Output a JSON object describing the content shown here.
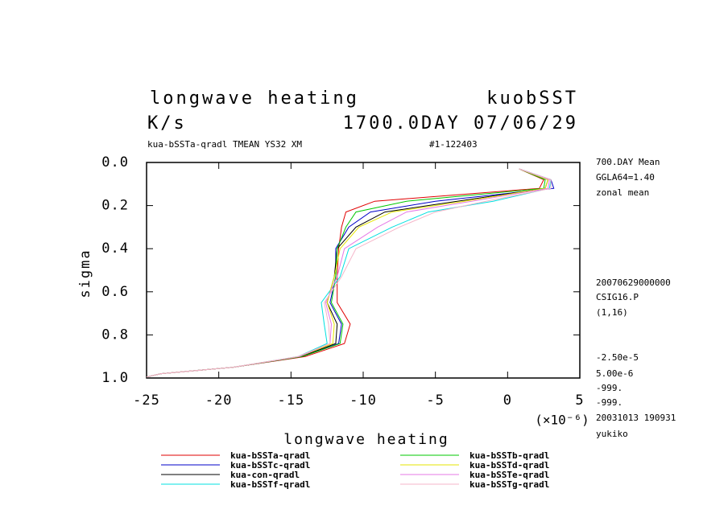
{
  "chart_data": {
    "type": "profile",
    "title": "longwave heating",
    "title_right": "kuobSST",
    "units": "K/s",
    "time_label": "1700.0DAY 07/06/29",
    "subtitle": "kua-bSSTa-qradl TMEAN YS32 XM",
    "run_id": "#1-122403",
    "x_label": "longwave heating",
    "x_multiplier": "(×10⁻⁶)",
    "y_label": "sigma",
    "annotations": [
      "700.DAY Mean",
      "GGLA64=1.40",
      "zonal mean",
      "20070629000000",
      "CSIG16.P",
      "(1,16)",
      "-2.50e-5",
      "5.00e-6",
      "-999.",
      "-999.",
      "20031013 190931",
      "yukiko"
    ],
    "xlim": [
      -25,
      5
    ],
    "xticks": [
      -25,
      -20,
      -15,
      -10,
      -5,
      0,
      5
    ],
    "ylim": [
      0,
      1
    ],
    "yticks": [
      {
        "value": 0,
        "label": "0.0"
      },
      0.2,
      0.4,
      0.6,
      0.8,
      {
        "value": 1,
        "label": "1.0"
      }
    ],
    "y_inverted": true,
    "sigma": [
      0.03,
      0.08,
      0.12,
      0.18,
      0.23,
      0.3,
      0.4,
      0.53,
      0.65,
      0.75,
      0.84,
      0.9,
      0.95,
      0.98,
      0.995
    ],
    "series": [
      {
        "name": "kua-bSSTa-qradl",
        "color": "#e00000",
        "values": [
          0.8,
          2.5,
          2.2,
          -9.2,
          -11.2,
          -11.5,
          -11.7,
          -11.8,
          -11.8,
          -10.9,
          -11.3,
          -14,
          -19,
          -24,
          -25
        ]
      },
      {
        "name": "kua-bSSTc-qradl",
        "color": "#0000c8",
        "values": [
          0.8,
          3,
          3.2,
          -5,
          -9.5,
          -11,
          -11.9,
          -11.9,
          -12.3,
          -11.5,
          -11.7,
          -14.2,
          -19,
          -24,
          -25
        ]
      },
      {
        "name": "kua-con-qradl",
        "color": "#000000",
        "values": [
          0.8,
          2.8,
          2.6,
          -3.5,
          -8.5,
          -10.5,
          -11.8,
          -12,
          -12.5,
          -11.8,
          -11.9,
          -14.3,
          -19,
          -24,
          -25
        ]
      },
      {
        "name": "kua-bSSTf-qradl",
        "color": "#00e0e0",
        "values": [
          0.8,
          3,
          2.9,
          -1,
          -5.5,
          -8,
          -11,
          -11.6,
          -12.9,
          -12.7,
          -12.5,
          -14.5,
          -19,
          -24,
          -25
        ]
      },
      {
        "name": "kua-bSSTb-qradl",
        "color": "#00c800",
        "values": [
          0.8,
          2.6,
          2.5,
          -7,
          -10.5,
          -11.2,
          -11.8,
          -11.9,
          -12.2,
          -11.4,
          -11.6,
          -14.2,
          -19,
          -24,
          -25
        ]
      },
      {
        "name": "kua-bSSTd-qradl",
        "color": "#e6e600",
        "values": [
          0.8,
          2.8,
          2.6,
          -3,
          -8,
          -10.3,
          -11.6,
          -12,
          -12.5,
          -12,
          -12.1,
          -14.4,
          -19,
          -24,
          -25
        ]
      },
      {
        "name": "kua-bSSTe-qradl",
        "color": "#e678e6",
        "values": [
          0.8,
          2.9,
          2.8,
          -2.5,
          -7,
          -9,
          -11.3,
          -11.8,
          -12.6,
          -12.2,
          -12.3,
          -14.4,
          -19,
          -24,
          -25
        ]
      },
      {
        "name": "kua-bSSTg-qradl",
        "color": "#f5b4c8",
        "values": [
          0.8,
          3,
          3,
          -1.5,
          -5,
          -7.5,
          -10.5,
          -11.5,
          -12.7,
          -12.4,
          -12.3,
          -14.5,
          -19,
          -24,
          -25
        ]
      }
    ]
  }
}
